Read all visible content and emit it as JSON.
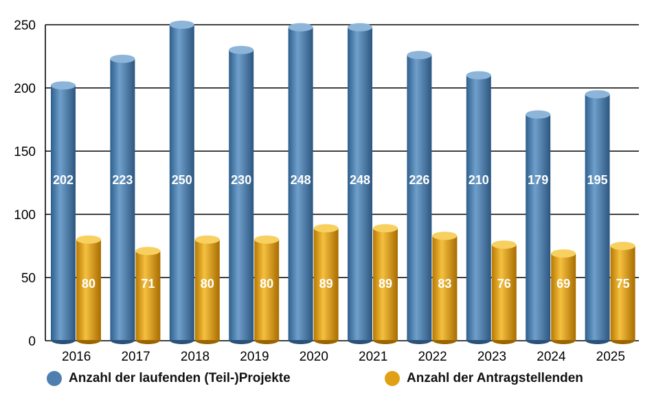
{
  "chart_data": {
    "type": "bar",
    "categories": [
      "2016",
      "2017",
      "2018",
      "2019",
      "2020",
      "2021",
      "2022",
      "2023",
      "2024",
      "2025"
    ],
    "series": [
      {
        "name": "Anzahl der laufenden (Teil-)Projekte",
        "values": [
          202,
          223,
          250,
          230,
          248,
          248,
          226,
          210,
          179,
          195
        ],
        "color": "#4f7fae"
      },
      {
        "name": "Anzahl der Antragstellenden",
        "values": [
          80,
          71,
          80,
          80,
          89,
          89,
          83,
          76,
          69,
          75
        ],
        "color": "#e0a015"
      }
    ],
    "ylim": [
      0,
      250
    ],
    "yticks": [
      0,
      50,
      100,
      150,
      200,
      250
    ],
    "grid": true,
    "legend": "bottom"
  }
}
